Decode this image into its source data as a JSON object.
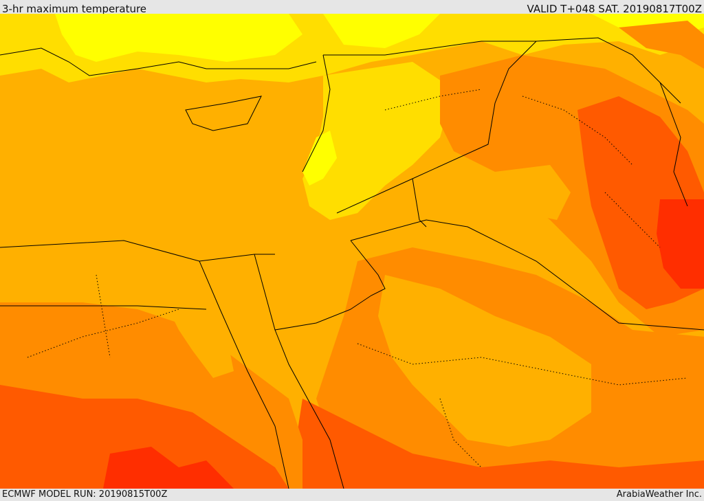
{
  "header": {
    "title": "3-hr maximum temperature",
    "valid": "VALID T+048 SAT. 20190817T00Z"
  },
  "footer": {
    "model_run": "ECMWF MODEL RUN: 20190815T00Z",
    "credit": "ArabiaWeather Inc."
  },
  "map": {
    "colors": {
      "coolest": "#ffff00",
      "cool": "#ffde00",
      "mild": "#ffb000",
      "warm": "#ff8c00",
      "hot": "#ff5a00",
      "hottest": "#ff2e00",
      "border": "#000000"
    }
  }
}
